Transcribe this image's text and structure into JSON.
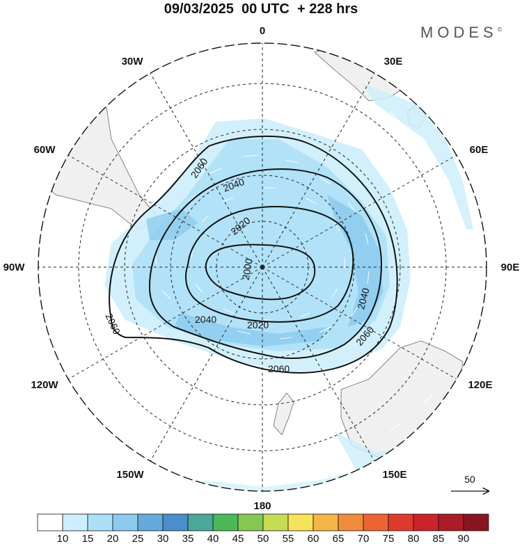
{
  "title": "09/03/2025  00 UTC  + 228 hrs",
  "brand": "MODES",
  "brand_mark": "©",
  "map": {
    "projection": "south polar stereographic",
    "longitude_labels": [
      "0",
      "30E",
      "60E",
      "90E",
      "120E",
      "150E",
      "180",
      "150W",
      "120W",
      "90W",
      "60W",
      "30W"
    ],
    "contour_labels": [
      "2000",
      "2020",
      "2040",
      "2060"
    ],
    "reference_vector_label": "50",
    "colors": {
      "wind_light": "#b6e0f7",
      "wind_mid": "#8ccbef",
      "wind_strong": "#5fa8dc",
      "land": "#f0f0f0",
      "coast": "#666666"
    }
  },
  "colorbar": {
    "ticks": [
      "10",
      "15",
      "20",
      "25",
      "30",
      "35",
      "40",
      "45",
      "50",
      "55",
      "60",
      "65",
      "70",
      "75",
      "80",
      "85",
      "90"
    ],
    "colors": [
      "#ffffff",
      "#cdeefc",
      "#ade0f7",
      "#8ccaee",
      "#66aadd",
      "#4a8fcb",
      "#4aa89d",
      "#4cb858",
      "#86c653",
      "#c7dc55",
      "#f6e35a",
      "#f6b548",
      "#f18c3c",
      "#ec6433",
      "#df3b2d",
      "#cb232b",
      "#ac1c26",
      "#8a1520"
    ]
  }
}
